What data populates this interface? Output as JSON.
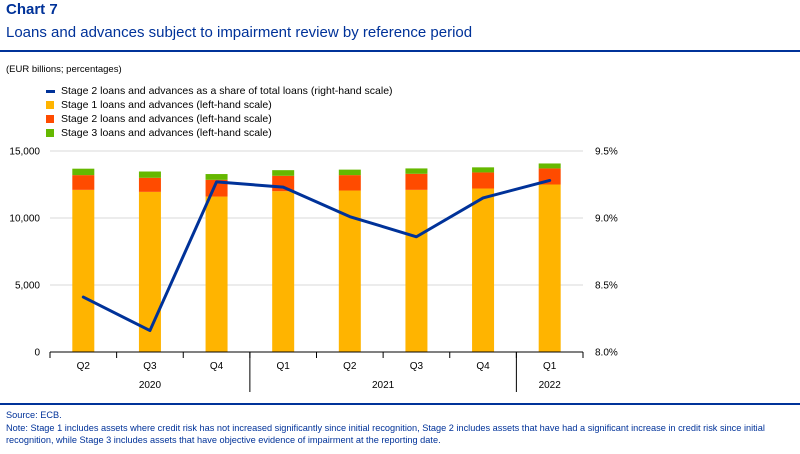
{
  "header": {
    "chart_label": "Chart 7",
    "title": "Loans and advances subject to impairment review by reference period",
    "units": "(EUR billions; percentages)"
  },
  "legend": [
    {
      "label": "Stage 2 loans and advances as a share of total loans (right-hand scale)",
      "kind": "line",
      "color": "#003299"
    },
    {
      "label": "Stage 1 loans and advances (left-hand scale)",
      "kind": "box",
      "color": "#FFB400"
    },
    {
      "label": "Stage 2 loans and advances (left-hand scale)",
      "kind": "box",
      "color": "#FF4B00"
    },
    {
      "label": "Stage 3 loans and advances (left-hand scale)",
      "kind": "box",
      "color": "#65B800"
    }
  ],
  "chart_data": {
    "type": "bar",
    "stacked": true,
    "categories": [
      "Q2",
      "Q3",
      "Q4",
      "Q1",
      "Q2",
      "Q3",
      "Q4",
      "Q1"
    ],
    "year_groups": [
      {
        "label": "2020",
        "span": 3
      },
      {
        "label": "2021",
        "span": 4
      },
      {
        "label": "2022",
        "span": 1
      }
    ],
    "series": [
      {
        "name": "Stage 1 loans and advances (left-hand scale)",
        "axis": "left",
        "color": "#FFB400",
        "values": [
          12100,
          11950,
          11600,
          12000,
          12050,
          12100,
          12200,
          12500
        ]
      },
      {
        "name": "Stage 2 loans and advances (left-hand scale)",
        "axis": "left",
        "color": "#FF4B00",
        "values": [
          1100,
          1050,
          1250,
          1150,
          1150,
          1200,
          1200,
          1200
        ]
      },
      {
        "name": "Stage 3 loans and advances (left-hand scale)",
        "axis": "left",
        "color": "#65B800",
        "values": [
          480,
          470,
          430,
          420,
          410,
          400,
          380,
          370
        ]
      },
      {
        "name": "Stage 2 loans and advances as a share of total loans (right-hand scale)",
        "axis": "right",
        "type": "line",
        "color": "#003299",
        "values": [
          8.41,
          8.16,
          9.27,
          9.23,
          9.01,
          8.86,
          9.15,
          9.28
        ]
      }
    ],
    "y_left": {
      "min": 0,
      "max": 15000,
      "ticks": [
        0,
        5000,
        10000,
        15000
      ],
      "tick_labels": [
        "0",
        "5,000",
        "10,000",
        "15,000"
      ]
    },
    "y_right": {
      "min": 8.0,
      "max": 9.5,
      "ticks": [
        8.0,
        8.5,
        9.0,
        9.5
      ],
      "tick_labels": [
        "8.0%",
        "8.5%",
        "9.0%",
        "9.5%"
      ]
    },
    "grid": true
  },
  "footer": {
    "source": "Source: ECB.",
    "note": "Note: Stage 1 includes assets where credit risk has not increased significantly since initial recognition, Stage 2 includes assets that have had a significant increase in credit risk since initial recognition, while Stage 3 includes assets that have objective evidence of impairment at the reporting date."
  }
}
